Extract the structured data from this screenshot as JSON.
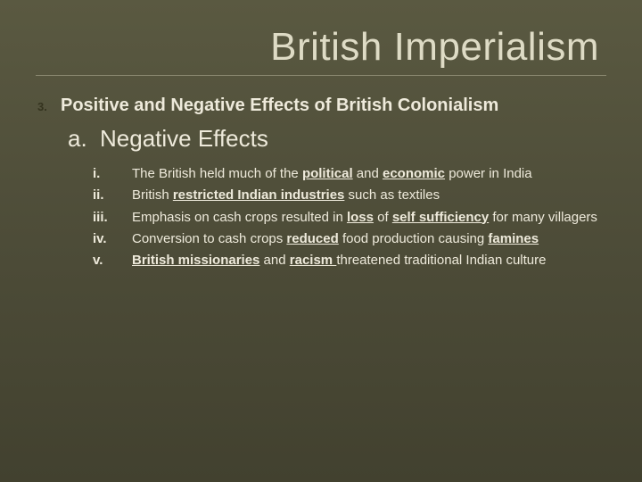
{
  "title": "British Imperialism",
  "main": {
    "number": "3.",
    "text": "Positive and Negative Effects of British Colonialism"
  },
  "subA": {
    "label": "a.",
    "text": "Negative Effects"
  },
  "items": [
    {
      "label": "i.",
      "html": "The British held much of the <span class='b u'>political</span> and <span class='b u'>economic</span> power in India"
    },
    {
      "label": "ii.",
      "html": "British <span class='b u'>restricted Indian industries</span> such as textiles"
    },
    {
      "label": "iii.",
      "html": "Emphasis on cash crops resulted in <span class='b u'>loss</span> of <span class='b u'>self sufficiency</span> for many villagers"
    },
    {
      "label": "iv.",
      "html": "Conversion to cash crops <span class='b u'>reduced</span> food production causing <span class='b u'>famines</span>"
    },
    {
      "label": "v.",
      "html": "<span class='b u'>British missionaries</span> and <span class='b u'>racism </span>threatened traditional Indian culture"
    }
  ],
  "colors": {
    "bg_top": "#5a5941",
    "bg_bottom": "#42412f",
    "title_color": "#dedbc5",
    "text_color": "#eeeadb",
    "rule_color": "#8a8870",
    "number_color": "#34331e"
  },
  "typography": {
    "title_fontsize": 44,
    "main_fontsize": 20,
    "subA_fontsize": 26,
    "roman_fontsize": 15
  }
}
